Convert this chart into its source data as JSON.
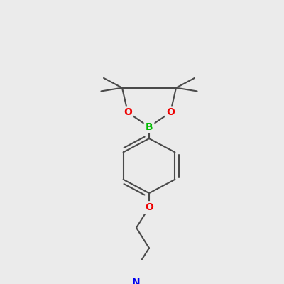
{
  "background_color": "#ebebeb",
  "bond_color": "#4a4a4a",
  "bond_width": 1.5,
  "atom_colors": {
    "B": "#00bb00",
    "O": "#ee0000",
    "N": "#0000ee",
    "C": "#4a4a4a"
  },
  "figsize": [
    4.0,
    4.0
  ],
  "dpi": 100
}
